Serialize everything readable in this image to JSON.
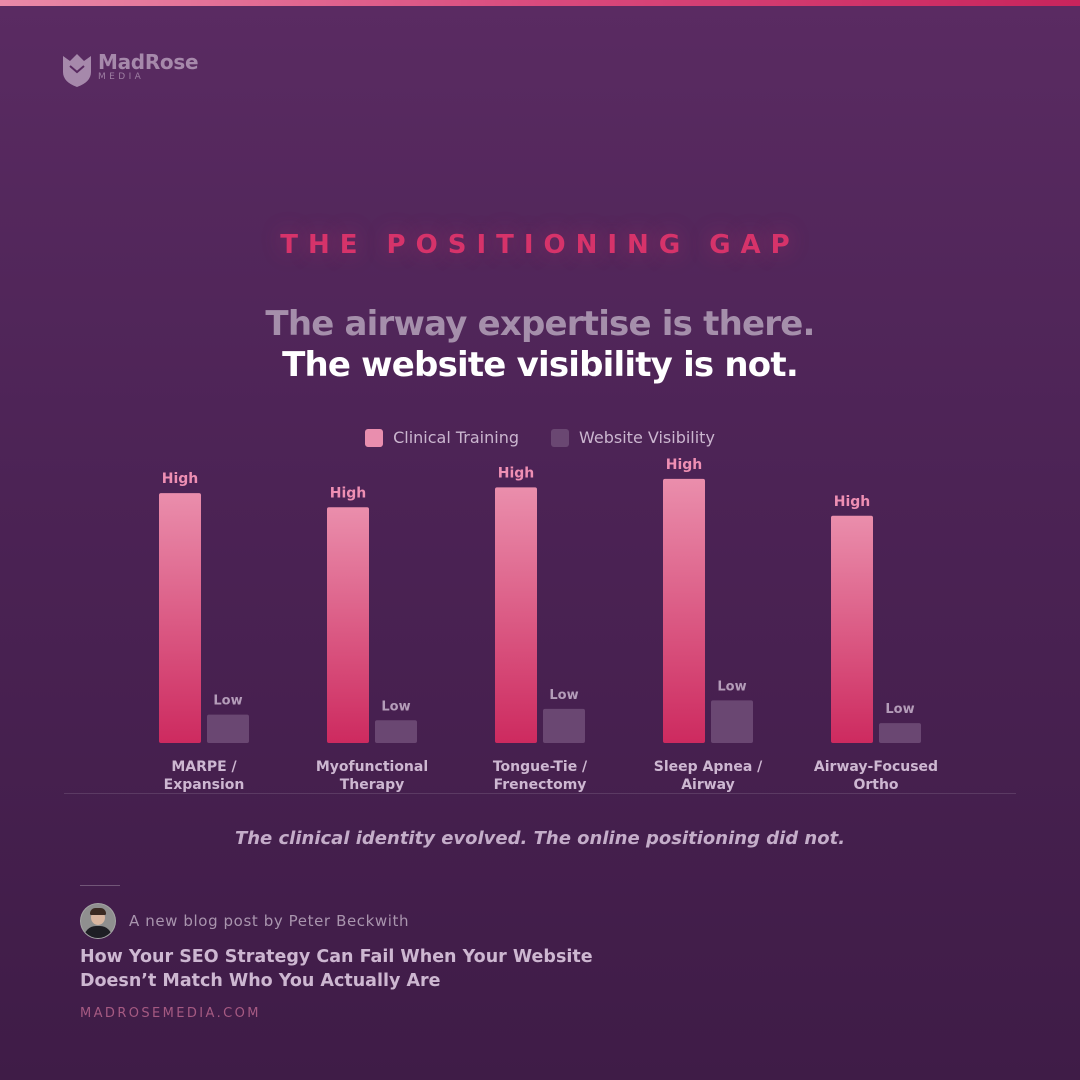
{
  "brand": {
    "name": "MadRose",
    "sub": "MEDIA",
    "logo_icon": "shield-icon"
  },
  "colors": {
    "accent": "#d6336a",
    "bar_high_top": "#ea8eac",
    "bar_high_bottom": "#cd2a5f",
    "bar_low": "#6a4772",
    "background_top": "#5a2b62",
    "background_bottom": "#3f1c47"
  },
  "header": {
    "eyebrow": "THE POSITIONING GAP",
    "headline_muted": "The airway expertise is there.",
    "headline_bold": "The website visibility is not."
  },
  "chart_data": {
    "type": "bar",
    "title": "",
    "xlabel": "",
    "ylabel": "",
    "categories": [
      [
        "MARPE /",
        "Expansion"
      ],
      [
        "Myofunctional",
        "Therapy"
      ],
      [
        "Tongue-Tie /",
        "Frenectomy"
      ],
      [
        "Sleep Apnea /",
        "Airway"
      ],
      [
        "Airway-Focused",
        "Ortho"
      ]
    ],
    "series": [
      {
        "name": "Clinical Training",
        "values": [
          88,
          83,
          90,
          93,
          80
        ],
        "labels": [
          "High",
          "High",
          "High",
          "High",
          "High"
        ],
        "color": "#e17ea2"
      },
      {
        "name": "Website Visibility",
        "values": [
          10,
          8,
          12,
          15,
          7
        ],
        "labels": [
          "Low",
          "Low",
          "Low",
          "Low",
          "Low"
        ],
        "color": "#6a4772"
      }
    ],
    "ylim": [
      0,
      100
    ],
    "grid": false,
    "legend": "top-center"
  },
  "caption": "The clinical identity evolved. The online positioning did not.",
  "footer": {
    "author_line": "A new blog post by Peter Beckwith",
    "avatar_icon": "person-avatar",
    "post_title": "How Your SEO Strategy Can Fail When Your Website Doesn’t Match Who You Actually Are",
    "url": "MADROSEMEDIA.COM"
  }
}
